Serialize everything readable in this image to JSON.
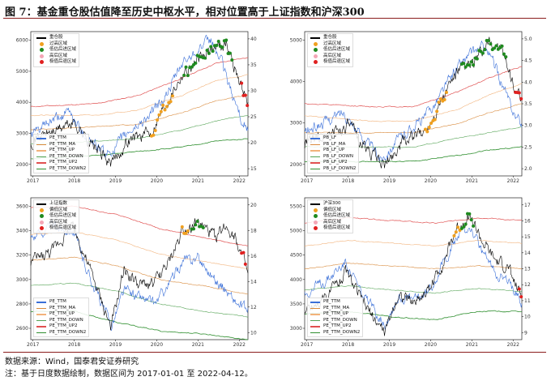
{
  "title": "图 7：基金重仓股估值降至历史中枢水平，相对位置高于上证指数和沪深300",
  "source": "数据来源：Wind，国泰君安证券研究",
  "note": "注：基于日度数据绘制，数据区间为 2017-01-01 至 2022-04-12。",
  "colors": {
    "index": "#000000",
    "pe": "#3a6fd8",
    "ma": "#d98a3c",
    "up": "#f2b27a",
    "down": "#54a354",
    "up2": "#e05050",
    "down2": "#2f8f2f",
    "dot_over": "#f0a020",
    "dot_green": "#1f8a1f",
    "dot_pink": "#f4a6b6",
    "dot_red": "#e02020"
  },
  "chart_data": [
    {
      "type": "line",
      "x_ticks": [
        "2017",
        "2018",
        "2019",
        "2020",
        "2021",
        "2022"
      ],
      "y_left_ticks": [
        "2000",
        "3000",
        "4000",
        "5000",
        "6000"
      ],
      "y_right_ticks": [
        "15",
        "20",
        "25",
        "30",
        "35",
        "40"
      ],
      "ylim_left": [
        1700,
        6300
      ],
      "ylim_right": [
        12,
        41
      ],
      "legend_markers": [
        "重仓股",
        "过高区域",
        "低估后进区域",
        "高后区域",
        "极值后退区域"
      ],
      "legend_lines": [
        "PE_TTM",
        "PE_TTM_MA",
        "PE_TTM_UP",
        "PE_TTM_DOWN",
        "PE_TTM_UP2",
        "PE_TTM_DOWN2"
      ]
    },
    {
      "type": "line",
      "x_ticks": [
        "2017",
        "2018",
        "2019",
        "2020",
        "2021",
        "2022"
      ],
      "y_left_ticks": [
        "2000",
        "3000",
        "4000",
        "5000"
      ],
      "y_right_ticks": [
        "2.0",
        "2.5",
        "3.0",
        "3.5",
        "4.0",
        "4.5",
        "5.0"
      ],
      "ylim_left": [
        1600,
        5900
      ],
      "ylim_right": [
        1.8,
        5.1
      ],
      "legend_markers": [
        "重仓股",
        "过高区域",
        "低估后进区域",
        "高后区域",
        "极值后退区域"
      ],
      "legend_lines": [
        "PB_LF",
        "PB_LF_MA",
        "PB_LF_UP",
        "PB_LF_DOWN",
        "PB_LF_UP2",
        "PB_LF_DOWN2"
      ]
    },
    {
      "type": "line",
      "x_ticks": [
        "2017",
        "2018",
        "2019",
        "2020",
        "2021",
        "2022"
      ],
      "y_left_ticks": [
        "2600",
        "2800",
        "3000",
        "3200",
        "3400",
        "3600"
      ],
      "y_right_ticks": [
        "10",
        "12",
        "14",
        "16",
        "18",
        "20"
      ],
      "ylim_left": [
        2450,
        3800
      ],
      "ylim_right": [
        9.5,
        20.2
      ],
      "legend_markers": [
        "上证指数",
        "偏低区域",
        "低估后进区域",
        "高后区域",
        "极值后退区域"
      ],
      "legend_lines": [
        "PE_TTM",
        "PE_TTM_MA",
        "PE_TTM_UP",
        "PE_TTM_DOWN",
        "PE_TTM_UP2",
        "PE_TTM_DOWN2"
      ]
    },
    {
      "type": "line",
      "x_ticks": [
        "2017",
        "2018",
        "2019",
        "2020",
        "2021",
        "2022"
      ],
      "y_left_ticks": [
        "3000",
        "3500",
        "4000",
        "4500",
        "5000",
        "5500"
      ],
      "y_right_ticks": [
        "9",
        "10",
        "11",
        "12",
        "13",
        "14",
        "15",
        "16",
        "17"
      ],
      "ylim_left": [
        2900,
        5900
      ],
      "ylim_right": [
        9,
        17.6
      ],
      "legend_markers": [
        "沪深300",
        "偏低区域",
        "低估后进区域",
        "高后区域",
        "极值后退区域"
      ],
      "legend_lines": [
        "PE_TTM",
        "PE_TTM_MA",
        "PE_TTM_UP",
        "PE_TTM_DOWN",
        "PE_TTM_UP2",
        "PE_TTM_DOWN2"
      ]
    }
  ]
}
